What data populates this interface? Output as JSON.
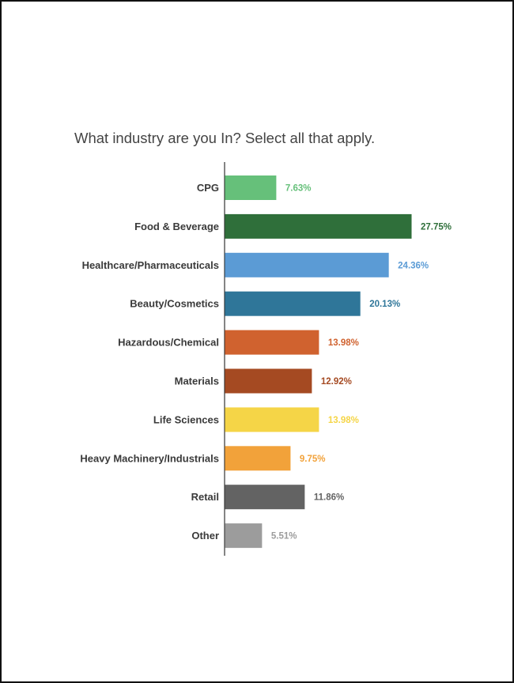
{
  "page": {
    "title": "What industry are you In? Select all that apply."
  },
  "chart_data": {
    "type": "bar",
    "orientation": "horizontal",
    "title": "What industry are you In? Select all that apply.",
    "xlabel": "",
    "ylabel": "",
    "xlim": [
      0,
      30
    ],
    "grid": false,
    "legend": "none",
    "categories": [
      "CPG",
      "Food & Beverage",
      "Healthcare/Pharmaceuticals",
      "Beauty/Cosmetics",
      "Hazardous/Chemical",
      "Materials",
      "Life Sciences",
      "Heavy Machinery/Industrials",
      "Retail",
      "Other"
    ],
    "values": [
      7.63,
      27.75,
      24.36,
      20.13,
      13.98,
      12.92,
      13.98,
      9.75,
      11.86,
      5.51
    ],
    "value_labels": [
      "7.63%",
      "27.75%",
      "24.36%",
      "20.13%",
      "13.98%",
      "12.92%",
      "13.98%",
      "9.75%",
      "11.86%",
      "5.51%"
    ],
    "colors": [
      "#66c07a",
      "#2f6f3a",
      "#5b9bd5",
      "#2f7699",
      "#d0622f",
      "#a54a22",
      "#f5d547",
      "#f2a23a",
      "#636363",
      "#9c9c9c"
    ]
  }
}
